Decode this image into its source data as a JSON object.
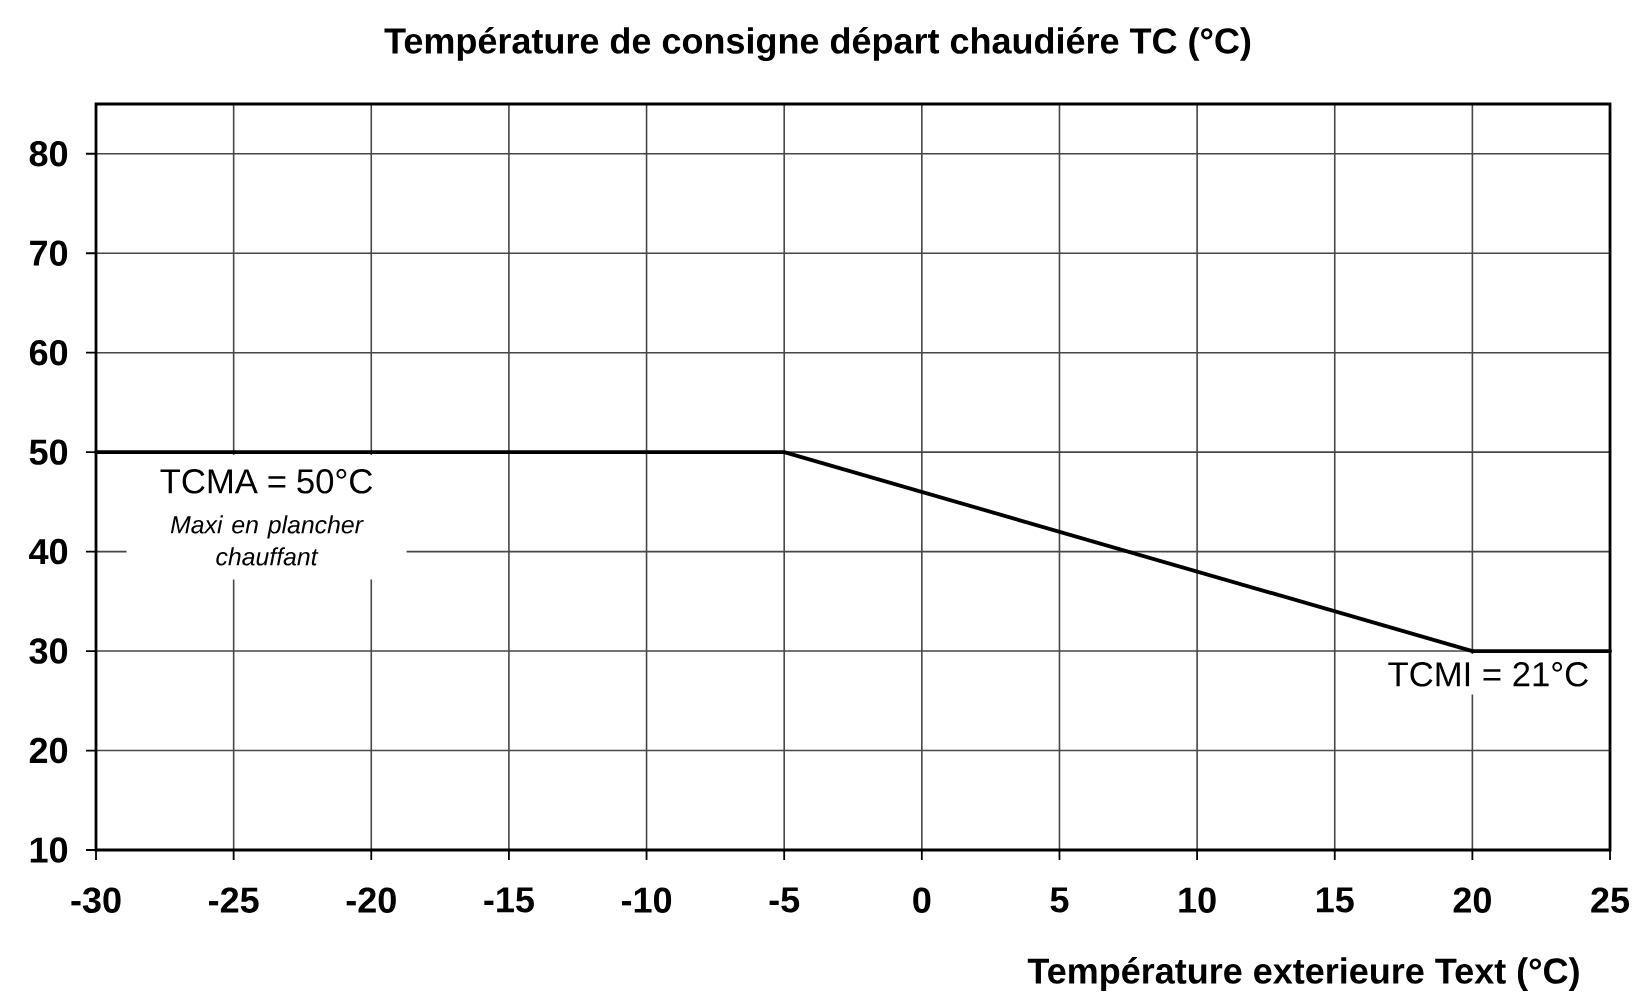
{
  "chart_data": {
    "type": "line",
    "title": "Température de consigne départ chaudiére TC (°C)",
    "xlabel": "Température exterieure Text (°C)",
    "x": [
      -30,
      -5,
      20,
      25
    ],
    "values": [
      50,
      50,
      30,
      30
    ],
    "color": "#000000",
    "marker": "none",
    "line_style": "solid",
    "grid": true,
    "xlim": [
      -30,
      25
    ],
    "ylim": [
      10,
      85
    ],
    "xticks": [
      -30,
      -25,
      -20,
      -15,
      -10,
      -5,
      0,
      5,
      10,
      15,
      20,
      25
    ],
    "yticks": [
      10,
      20,
      30,
      40,
      50,
      60,
      70,
      80
    ],
    "annotations": [
      {
        "text": "TCMA = 50°C",
        "x": -30,
        "y": 50
      },
      "Maxi en plancher chauffant",
      {
        "text": "TCMI = 21°C",
        "x": 20,
        "y": 30
      }
    ]
  }
}
